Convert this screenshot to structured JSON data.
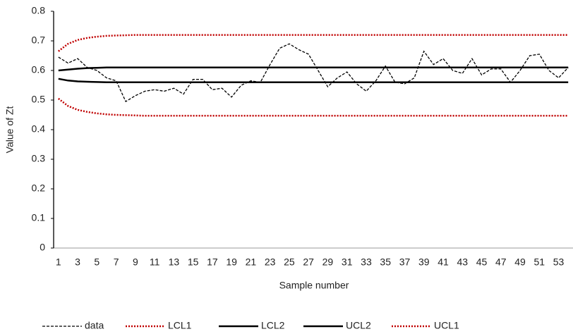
{
  "chart_data": {
    "type": "line",
    "y_label": "Value of Zt",
    "x_label": "Sample number",
    "categories": [
      1,
      null,
      3,
      null,
      5,
      null,
      7,
      null,
      9,
      null,
      11,
      null,
      13,
      null,
      15,
      null,
      17,
      null,
      19,
      null,
      21,
      null,
      23,
      null,
      25,
      null,
      27,
      null,
      29,
      null,
      31,
      null,
      33,
      null,
      35,
      null,
      37,
      null,
      39,
      null,
      41,
      null,
      43,
      null,
      45,
      null,
      47,
      null,
      49,
      null,
      51,
      null,
      53,
      null
    ],
    "series": [
      {
        "name": "data",
        "color": "#000000",
        "dash": "dashed",
        "values": [
          0.645,
          0.625,
          0.64,
          0.61,
          0.6,
          0.575,
          0.565,
          0.495,
          0.515,
          0.53,
          0.535,
          0.53,
          0.54,
          0.52,
          0.57,
          0.57,
          0.535,
          0.54,
          0.51,
          0.55,
          0.565,
          0.56,
          0.62,
          0.675,
          0.69,
          0.67,
          0.655,
          0.6,
          0.545,
          0.575,
          0.595,
          0.555,
          0.53,
          0.565,
          0.615,
          0.56,
          0.555,
          0.575,
          0.665,
          0.62,
          0.64,
          0.6,
          0.59,
          0.64,
          0.585,
          0.605,
          0.605,
          0.56,
          0.6,
          0.65,
          0.655,
          0.6,
          0.575,
          0.61
        ]
      },
      {
        "name": "LCL1",
        "color": "#c00000",
        "dash": "dotted",
        "values": [
          0.505,
          0.48,
          0.467,
          0.46,
          0.455,
          0.452,
          0.45,
          0.449,
          0.448,
          0.447,
          0.447,
          0.447,
          0.447,
          0.447,
          0.447,
          0.447,
          0.447,
          0.447,
          0.447,
          0.447,
          0.447,
          0.447,
          0.447,
          0.447,
          0.447,
          0.447,
          0.447,
          0.447,
          0.447,
          0.447,
          0.447,
          0.447,
          0.447,
          0.447,
          0.447,
          0.447,
          0.447,
          0.447,
          0.447,
          0.447,
          0.447,
          0.447,
          0.447,
          0.447,
          0.447,
          0.447,
          0.447,
          0.447,
          0.447,
          0.447,
          0.447,
          0.447,
          0.447,
          0.447
        ]
      },
      {
        "name": "LCL2",
        "color": "#000000",
        "dash": "solid",
        "values": [
          0.572,
          0.566,
          0.563,
          0.562,
          0.561,
          0.56,
          0.56,
          0.56,
          0.56,
          0.56,
          0.56,
          0.56,
          0.56,
          0.56,
          0.56,
          0.56,
          0.56,
          0.56,
          0.56,
          0.56,
          0.56,
          0.56,
          0.56,
          0.56,
          0.56,
          0.56,
          0.56,
          0.56,
          0.56,
          0.56,
          0.56,
          0.56,
          0.56,
          0.56,
          0.56,
          0.56,
          0.56,
          0.56,
          0.56,
          0.56,
          0.56,
          0.56,
          0.56,
          0.56,
          0.56,
          0.56,
          0.56,
          0.56,
          0.56,
          0.56,
          0.56,
          0.56,
          0.56,
          0.56
        ]
      },
      {
        "name": "UCL2",
        "color": "#000000",
        "dash": "solid",
        "values": [
          0.6,
          0.603,
          0.606,
          0.608,
          0.609,
          0.61,
          0.61,
          0.61,
          0.61,
          0.61,
          0.61,
          0.61,
          0.61,
          0.61,
          0.61,
          0.61,
          0.61,
          0.61,
          0.61,
          0.61,
          0.61,
          0.61,
          0.61,
          0.61,
          0.61,
          0.61,
          0.61,
          0.61,
          0.61,
          0.61,
          0.61,
          0.61,
          0.61,
          0.61,
          0.61,
          0.61,
          0.61,
          0.61,
          0.61,
          0.61,
          0.61,
          0.61,
          0.61,
          0.61,
          0.61,
          0.61,
          0.61,
          0.61,
          0.61,
          0.61,
          0.61,
          0.61,
          0.61,
          0.61
        ]
      },
      {
        "name": "UCL1",
        "color": "#c00000",
        "dash": "dotted",
        "values": [
          0.665,
          0.69,
          0.703,
          0.71,
          0.714,
          0.717,
          0.718,
          0.719,
          0.72,
          0.72,
          0.72,
          0.72,
          0.72,
          0.72,
          0.72,
          0.72,
          0.72,
          0.72,
          0.72,
          0.72,
          0.72,
          0.72,
          0.72,
          0.72,
          0.72,
          0.72,
          0.72,
          0.72,
          0.72,
          0.72,
          0.72,
          0.72,
          0.72,
          0.72,
          0.72,
          0.72,
          0.72,
          0.72,
          0.72,
          0.72,
          0.72,
          0.72,
          0.72,
          0.72,
          0.72,
          0.72,
          0.72,
          0.72,
          0.72,
          0.72,
          0.72,
          0.72,
          0.72,
          0.72
        ]
      }
    ],
    "ylim": [
      0,
      0.8
    ],
    "yticks": [
      0,
      0.1,
      0.2,
      0.3,
      0.4,
      0.5,
      0.6,
      0.7,
      0.8
    ],
    "grid": false,
    "legend": "bottom"
  }
}
